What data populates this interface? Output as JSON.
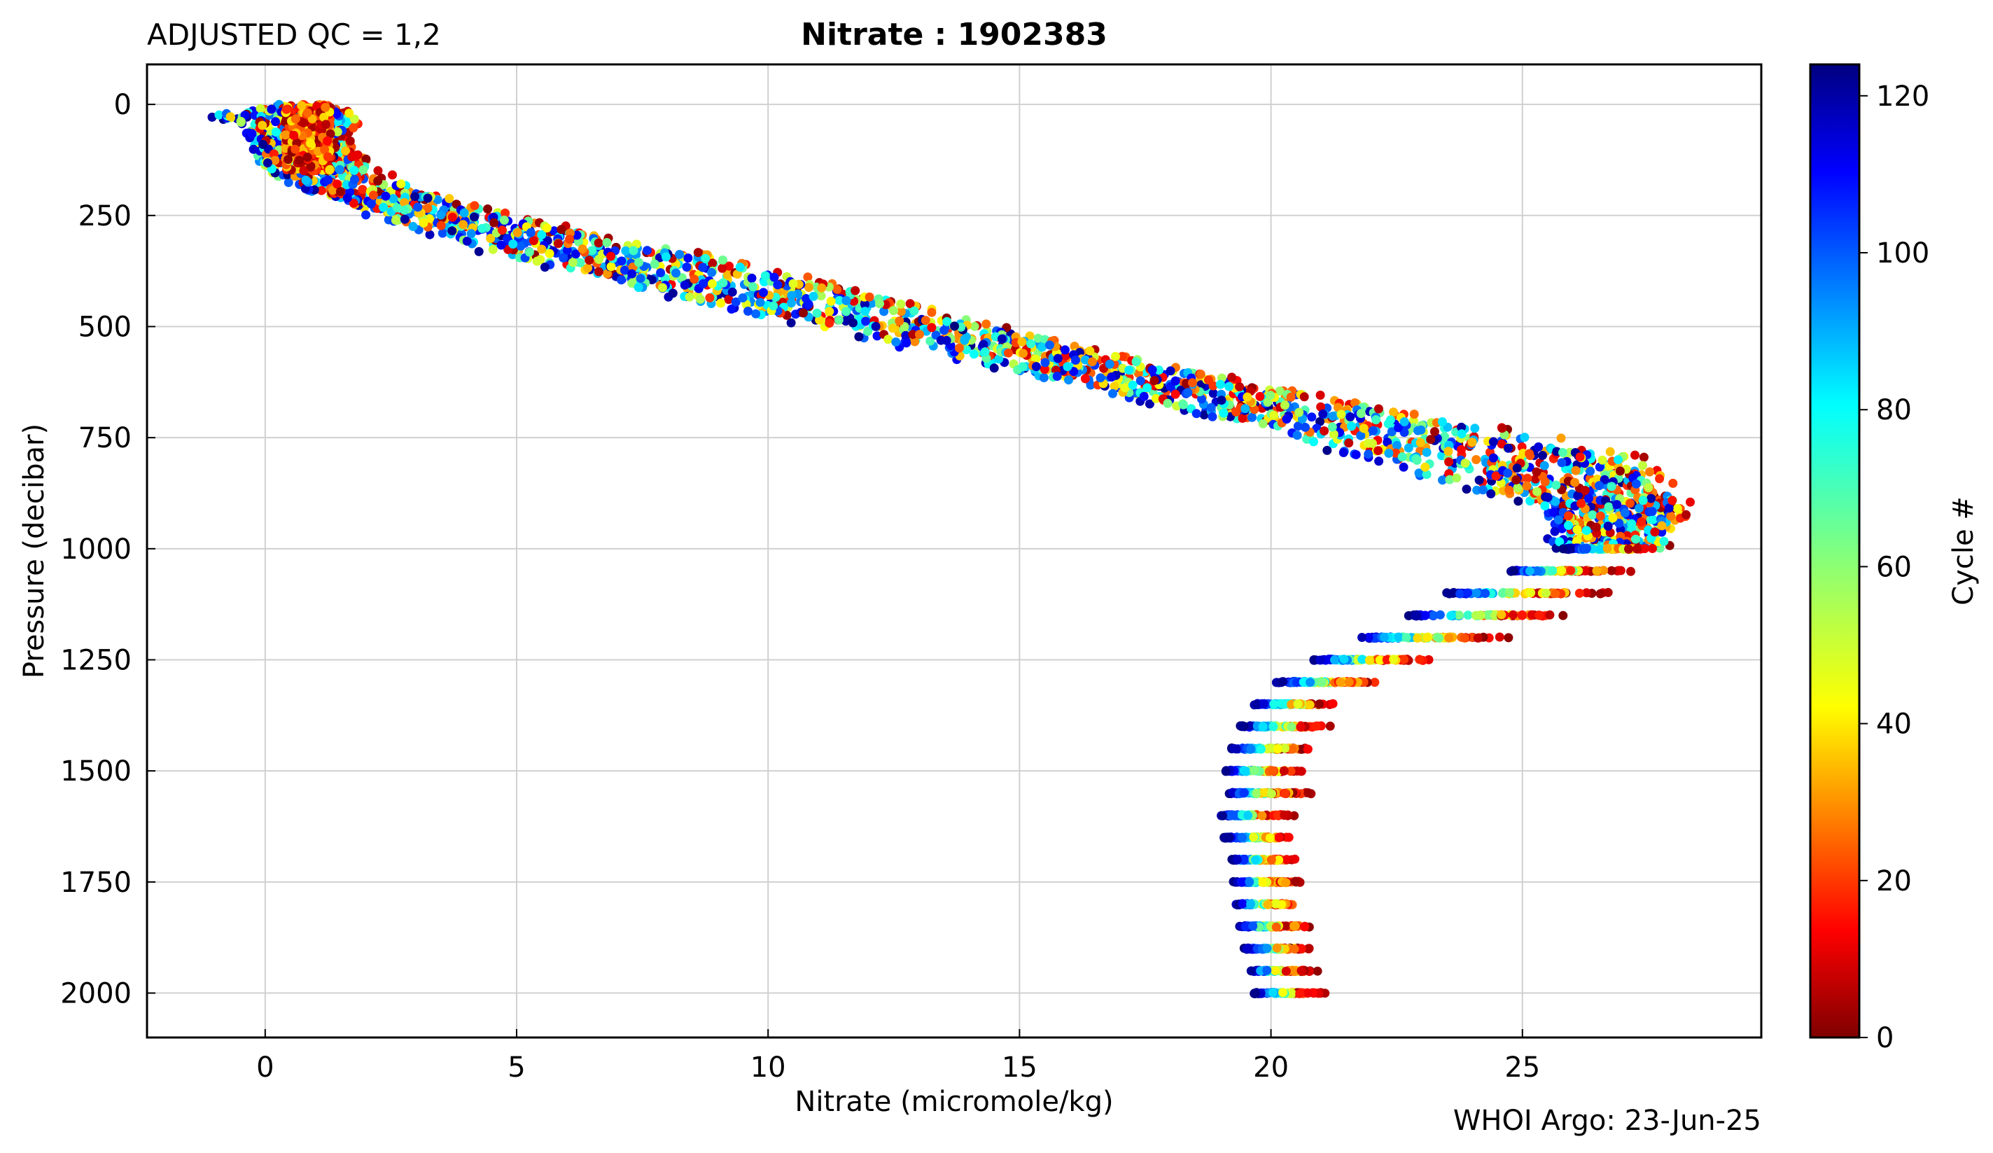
{
  "chart_data": {
    "type": "scatter",
    "title_left": "ADJUSTED QC = 1,2",
    "title": "Nitrate : 1902383",
    "xlabel": "Nitrate  (micromole/kg)",
    "ylabel": "Pressure  (decibar)",
    "footer": "WHOI Argo: 23-Jun-25",
    "xlim": [
      -2.35,
      29.75
    ],
    "ylim": [
      2100,
      -90
    ],
    "y_inverted": true,
    "grid": true,
    "x_ticks": [
      0,
      5,
      10,
      15,
      20,
      25
    ],
    "y_ticks": [
      0,
      250,
      500,
      750,
      1000,
      1250,
      1500,
      1750,
      2000
    ],
    "colorbar": {
      "label": "Cycle #",
      "range": [
        0,
        124
      ],
      "ticks": [
        0,
        20,
        40,
        60,
        80,
        100,
        120
      ],
      "colormap": "jet"
    },
    "profile_envelope": [
      {
        "pressure": 0,
        "nitrate_min": 0.3,
        "nitrate_max": 1.0
      },
      {
        "pressure": 25,
        "nitrate_min": -0.9,
        "nitrate_max": 1.9
      },
      {
        "pressure": 50,
        "nitrate_min": -0.3,
        "nitrate_max": 1.7
      },
      {
        "pressure": 100,
        "nitrate_min": -0.2,
        "nitrate_max": 1.6
      },
      {
        "pressure": 150,
        "nitrate_min": 0.0,
        "nitrate_max": 2.2
      },
      {
        "pressure": 200,
        "nitrate_min": 1.0,
        "nitrate_max": 3.2
      },
      {
        "pressure": 250,
        "nitrate_min": 2.2,
        "nitrate_max": 4.8
      },
      {
        "pressure": 300,
        "nitrate_min": 3.6,
        "nitrate_max": 6.8
      },
      {
        "pressure": 350,
        "nitrate_min": 5.2,
        "nitrate_max": 9.2
      },
      {
        "pressure": 400,
        "nitrate_min": 7.0,
        "nitrate_max": 11.0
      },
      {
        "pressure": 450,
        "nitrate_min": 9.0,
        "nitrate_max": 12.8
      },
      {
        "pressure": 500,
        "nitrate_min": 11.0,
        "nitrate_max": 14.6
      },
      {
        "pressure": 550,
        "nitrate_min": 13.0,
        "nitrate_max": 16.4
      },
      {
        "pressure": 600,
        "nitrate_min": 15.0,
        "nitrate_max": 18.4
      },
      {
        "pressure": 650,
        "nitrate_min": 17.0,
        "nitrate_max": 20.6
      },
      {
        "pressure": 700,
        "nitrate_min": 18.8,
        "nitrate_max": 22.8
      },
      {
        "pressure": 750,
        "nitrate_min": 20.6,
        "nitrate_max": 25.6
      },
      {
        "pressure": 800,
        "nitrate_min": 22.2,
        "nitrate_max": 27.2
      },
      {
        "pressure": 850,
        "nitrate_min": 23.6,
        "nitrate_max": 27.8
      },
      {
        "pressure": 900,
        "nitrate_min": 25.4,
        "nitrate_max": 28.2
      },
      {
        "pressure": 950,
        "nitrate_min": 25.8,
        "nitrate_max": 28.0
      },
      {
        "pressure": 1000,
        "nitrate_min": 25.6,
        "nitrate_max": 27.8
      },
      {
        "pressure": 1050,
        "nitrate_min": 24.4,
        "nitrate_max": 27.3
      },
      {
        "pressure": 1100,
        "nitrate_min": 23.0,
        "nitrate_max": 27.0
      },
      {
        "pressure": 1150,
        "nitrate_min": 22.4,
        "nitrate_max": 26.1
      },
      {
        "pressure": 1200,
        "nitrate_min": 21.4,
        "nitrate_max": 24.9
      },
      {
        "pressure": 1250,
        "nitrate_min": 20.5,
        "nitrate_max": 23.5
      },
      {
        "pressure": 1300,
        "nitrate_min": 19.8,
        "nitrate_max": 22.5
      },
      {
        "pressure": 1350,
        "nitrate_min": 19.4,
        "nitrate_max": 21.6
      },
      {
        "pressure": 1400,
        "nitrate_min": 19.2,
        "nitrate_max": 21.3
      },
      {
        "pressure": 1450,
        "nitrate_min": 19.0,
        "nitrate_max": 21.0
      },
      {
        "pressure": 1500,
        "nitrate_min": 18.9,
        "nitrate_max": 20.8
      },
      {
        "pressure": 1550,
        "nitrate_min": 18.9,
        "nitrate_max": 20.9
      },
      {
        "pressure": 1600,
        "nitrate_min": 18.8,
        "nitrate_max": 20.6
      },
      {
        "pressure": 1650,
        "nitrate_min": 18.9,
        "nitrate_max": 20.6
      },
      {
        "pressure": 1700,
        "nitrate_min": 19.0,
        "nitrate_max": 20.7
      },
      {
        "pressure": 1750,
        "nitrate_min": 19.1,
        "nitrate_max": 20.7
      },
      {
        "pressure": 1800,
        "nitrate_min": 19.1,
        "nitrate_max": 20.8
      },
      {
        "pressure": 1850,
        "nitrate_min": 19.2,
        "nitrate_max": 20.9
      },
      {
        "pressure": 1900,
        "nitrate_min": 19.3,
        "nitrate_max": 21.0
      },
      {
        "pressure": 1950,
        "nitrate_min": 19.4,
        "nitrate_max": 21.0
      },
      {
        "pressure": 2000,
        "nitrate_min": 19.5,
        "nitrate_max": 21.2
      }
    ],
    "cycle_count": 124
  }
}
